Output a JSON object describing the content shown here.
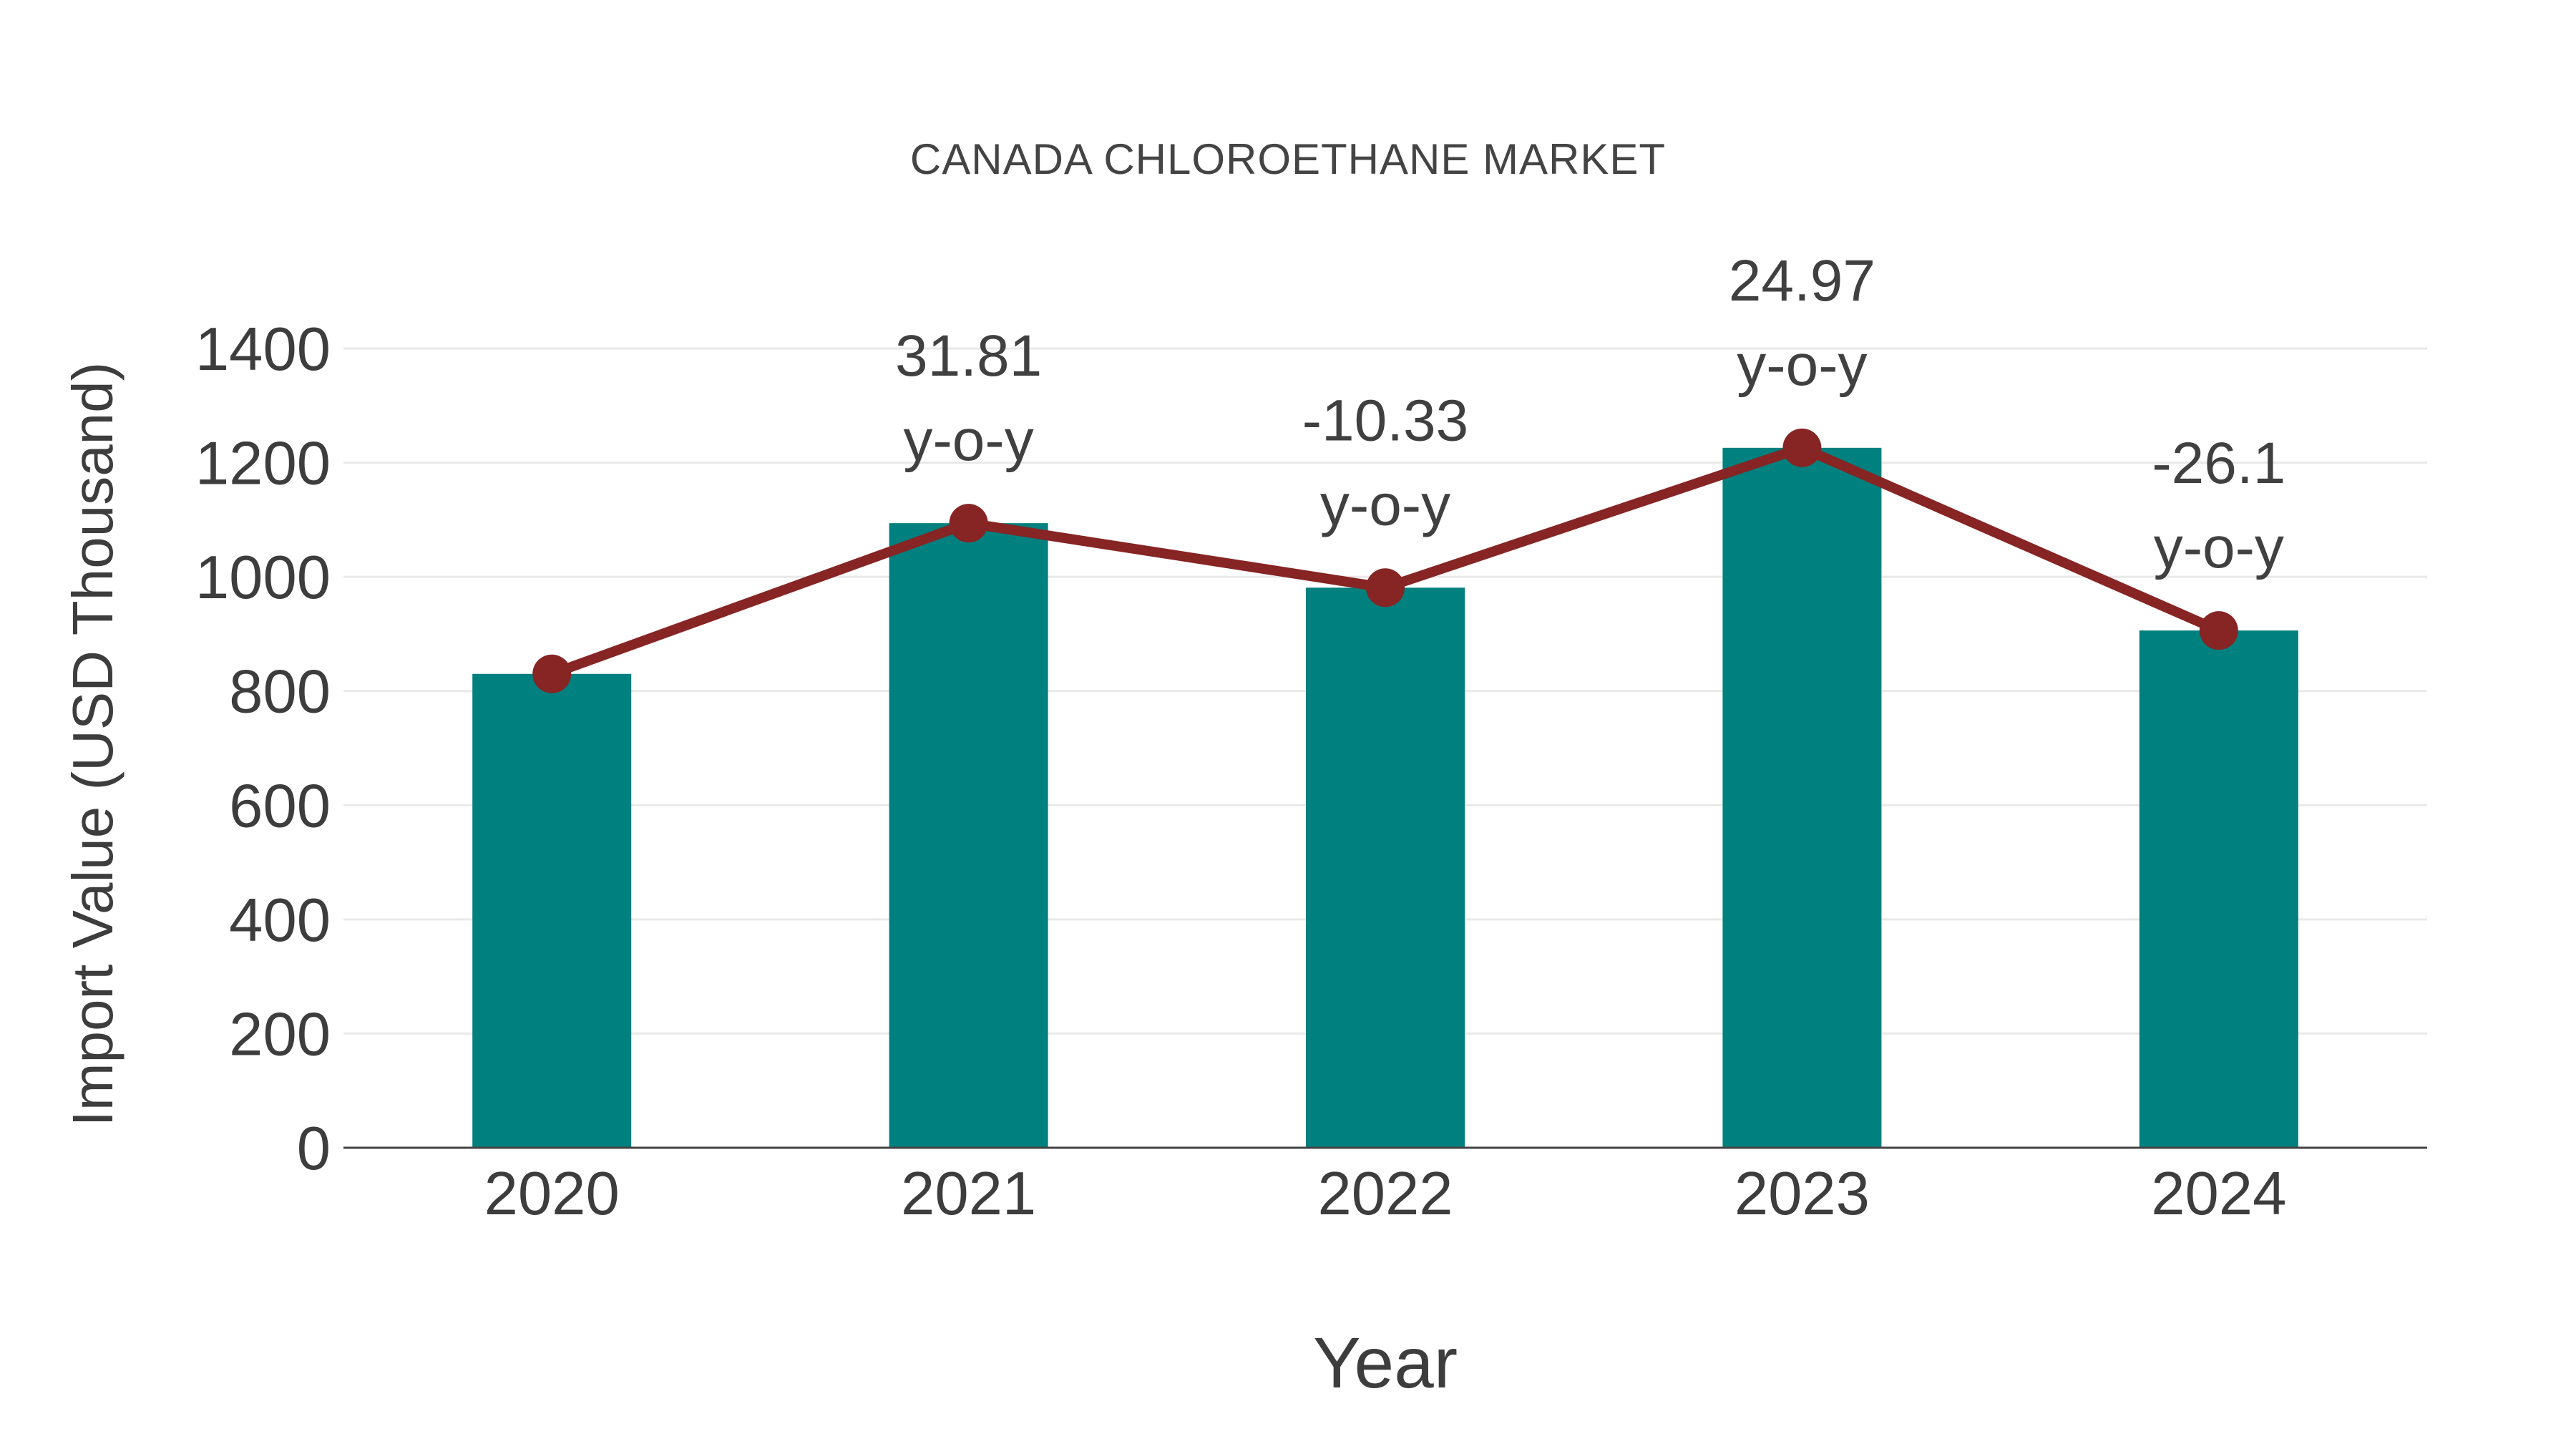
{
  "chart_data": {
    "type": "bar",
    "title": "CANADA CHLOROETHANE MARKET",
    "xlabel": "Year",
    "ylabel": "Import Value (USD Thousand)",
    "categories": [
      "2020",
      "2021",
      "2022",
      "2023",
      "2024"
    ],
    "values": [
      830,
      1094,
      981,
      1226,
      906
    ],
    "line_overlay": {
      "type": "line",
      "values": [
        830,
        1094,
        981,
        1226,
        906
      ]
    },
    "annotations": [
      {
        "category": "2021",
        "value": "31.81",
        "suffix": "y-o-y"
      },
      {
        "category": "2022",
        "value": "-10.33",
        "suffix": "y-o-y"
      },
      {
        "category": "2023",
        "value": "24.97",
        "suffix": "y-o-y"
      },
      {
        "category": "2024",
        "value": "-26.1",
        "suffix": "y-o-y"
      }
    ],
    "ylim": [
      0,
      1400
    ],
    "yticks": [
      0,
      200,
      400,
      600,
      800,
      1000,
      1200,
      1400
    ],
    "grid": true,
    "legend": "none"
  },
  "colors": {
    "bar": "#00807E",
    "line": "#872424",
    "marker": "#872424",
    "text": "#3D3D3D",
    "annotation_text": "#404040",
    "grid": "#E9E9E9",
    "axis": "#444444",
    "background": "#FFFFFF"
  }
}
